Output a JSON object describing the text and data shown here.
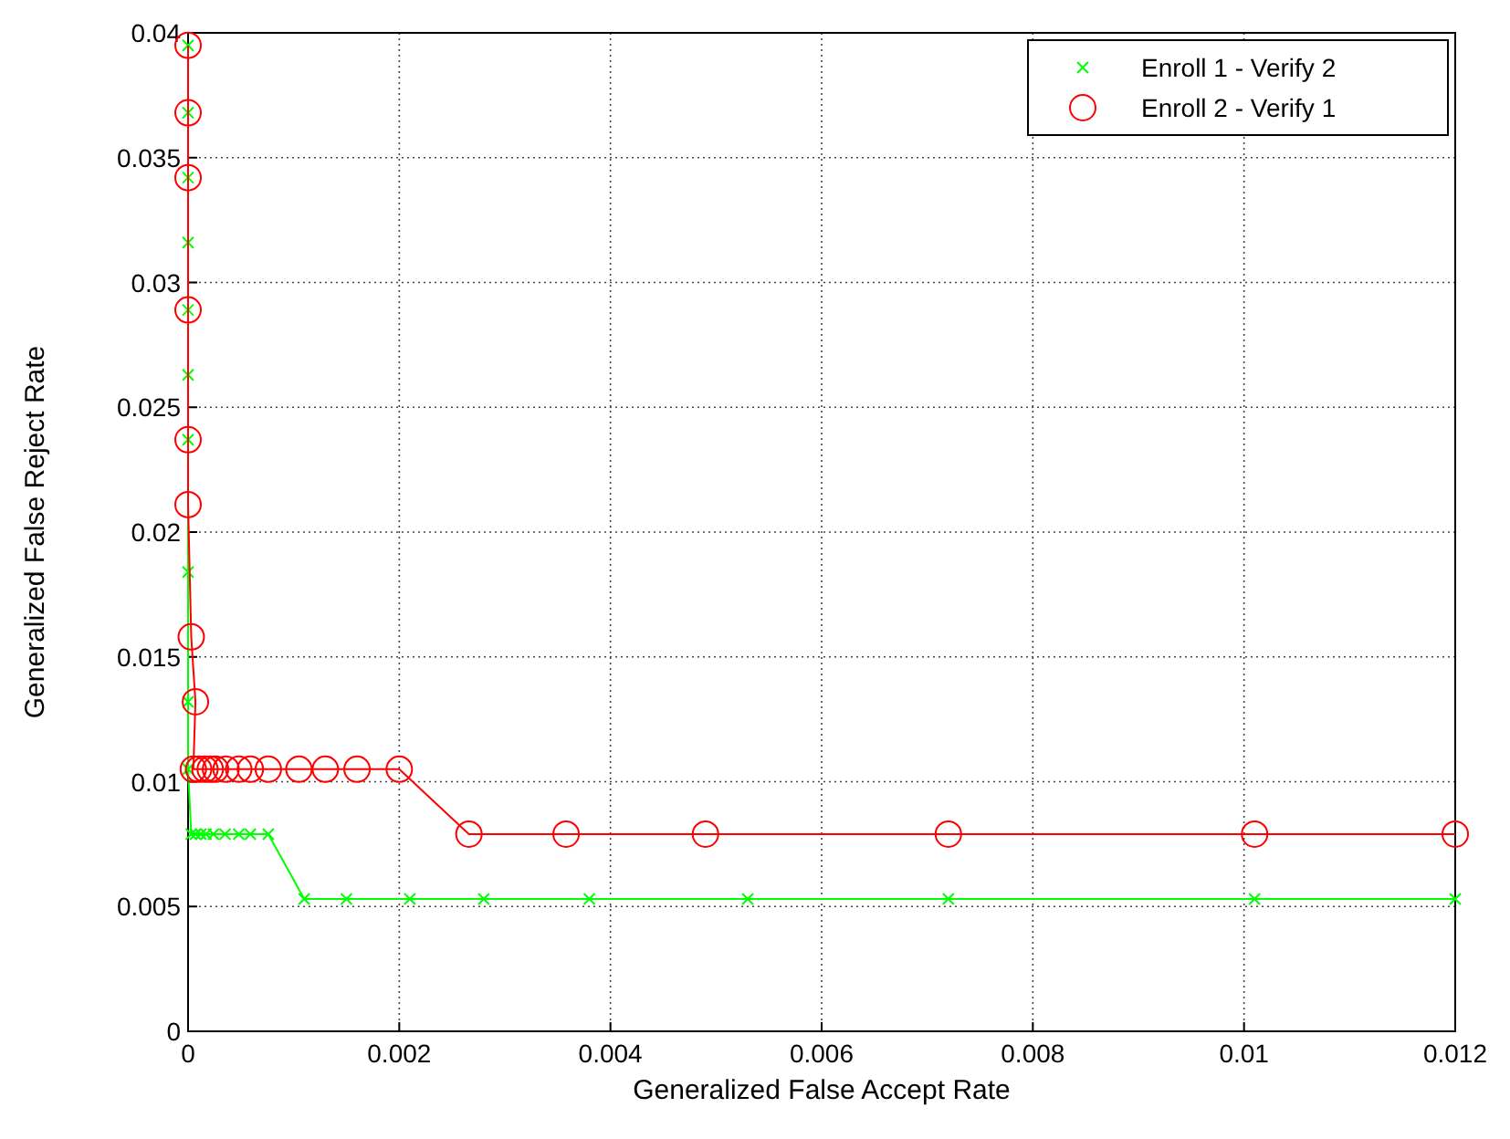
{
  "chart_data": {
    "type": "line",
    "xlabel": "Generalized False Accept Rate",
    "ylabel": "Generalized False Reject Rate",
    "xlim": [
      0,
      0.012
    ],
    "xticks": [
      0,
      0.002,
      0.004,
      0.006,
      0.008,
      0.01,
      0.012
    ],
    "ylim": [
      0,
      0.04
    ],
    "yticks": [
      0,
      0.005,
      0.01,
      0.015,
      0.02,
      0.025,
      0.03,
      0.035,
      0.04
    ],
    "grid": true,
    "legend": "top right",
    "line_style": "solid",
    "series": [
      {
        "name": "Enroll 1 - Verify 2",
        "color": "#00ff00",
        "marker": "cross",
        "x": [
          0,
          0,
          0,
          0,
          0,
          0,
          0,
          0,
          0,
          0,
          3e-05,
          7e-05,
          0.00012,
          0.00017,
          0.00024,
          0.00035,
          0.00048,
          0.00059,
          0.00076,
          0.0011,
          0.0015,
          0.0021,
          0.0028,
          0.0038,
          0.0053,
          0.0072,
          0.0101,
          0.012
        ],
        "values": [
          0.0395,
          0.0368,
          0.0342,
          0.0316,
          0.0289,
          0.0263,
          0.0237,
          0.0184,
          0.0132,
          0.0105,
          0.0079,
          0.0079,
          0.0079,
          0.0079,
          0.0079,
          0.0079,
          0.0079,
          0.0079,
          0.0079,
          0.0053,
          0.0053,
          0.0053,
          0.0053,
          0.0053,
          0.0053,
          0.0053,
          0.0053,
          0.0053
        ]
      },
      {
        "name": "Enroll 2 - Verify 1",
        "color": "#ff0000",
        "marker": "circle",
        "x": [
          0,
          0,
          0,
          0,
          0,
          0,
          3e-05,
          7e-05,
          5e-05,
          0.0001,
          0.00016,
          0.00021,
          0.00026,
          0.00036,
          0.00048,
          0.00059,
          0.00076,
          0.00105,
          0.0013,
          0.0016,
          0.002,
          0.00266,
          0.00358,
          0.0049,
          0.0072,
          0.0101,
          0.012
        ],
        "values": [
          0.0395,
          0.0368,
          0.0342,
          0.0289,
          0.0237,
          0.0211,
          0.0158,
          0.0132,
          0.0105,
          0.0105,
          0.0105,
          0.0105,
          0.0105,
          0.0105,
          0.0105,
          0.0105,
          0.0105,
          0.0105,
          0.0105,
          0.0105,
          0.0105,
          0.0079,
          0.0079,
          0.0079,
          0.0079,
          0.0079,
          0.0079
        ]
      }
    ]
  }
}
